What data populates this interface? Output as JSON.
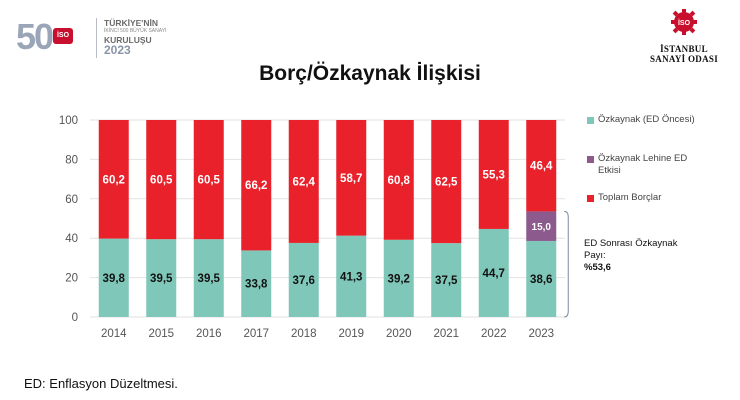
{
  "header": {
    "anniversary_number": "50",
    "anniversary_badge": "İSO",
    "anniversary_line1": "TÜRKİYE'NİN",
    "anniversary_line2": "İKİNCİ 500 BÜYÜK SANAYİ",
    "anniversary_line3": "KURULUŞU",
    "anniversary_year": "2023",
    "org_badge": "İSO",
    "org_line1": "İSTANBUL",
    "org_line2": "SANAYİ ODASI"
  },
  "footnote": "ED: Enflasyon Düzeltmesi.",
  "annotation": {
    "line1": "ED Sonrası Özkaynak",
    "line2": "Payı:",
    "line3": "%53,6"
  },
  "chart_data": {
    "type": "bar",
    "stacked": true,
    "title": "Borç/Özkaynak İlişkisi",
    "categories": [
      "2014",
      "2015",
      "2016",
      "2017",
      "2018",
      "2019",
      "2020",
      "2021",
      "2022",
      "2023"
    ],
    "series": [
      {
        "name": "Özkaynak (ED Öncesi)",
        "color": "#7fc7b9",
        "values": [
          39.8,
          39.5,
          39.5,
          33.8,
          37.6,
          41.3,
          39.2,
          37.5,
          44.7,
          38.6
        ],
        "labels": [
          "39,8",
          "39,5",
          "39,5",
          "33,8",
          "37,6",
          "41,3",
          "39,2",
          "37,5",
          "44,7",
          "38,6"
        ]
      },
      {
        "name": "Özkaynak Lehine ED Etkisi",
        "color": "#8c5a8c",
        "values": [
          0,
          0,
          0,
          0,
          0,
          0,
          0,
          0,
          0,
          15.0
        ],
        "labels": [
          "",
          "",
          "",
          "",
          "",
          "",
          "",
          "",
          "",
          "15,0"
        ]
      },
      {
        "name": "Toplam Borçlar",
        "color": "#e8212b",
        "values": [
          60.2,
          60.5,
          60.5,
          66.2,
          62.4,
          58.7,
          60.8,
          62.5,
          55.3,
          46.4
        ],
        "labels": [
          "60,2",
          "60,5",
          "60,5",
          "66,2",
          "62,4",
          "58,7",
          "60,8",
          "62,5",
          "55,3",
          "46,4"
        ]
      }
    ],
    "yticks": [
      "0",
      "20",
      "40",
      "60",
      "80",
      "100"
    ],
    "ylim": [
      0,
      100
    ],
    "grid": true,
    "legend_position": "right"
  }
}
